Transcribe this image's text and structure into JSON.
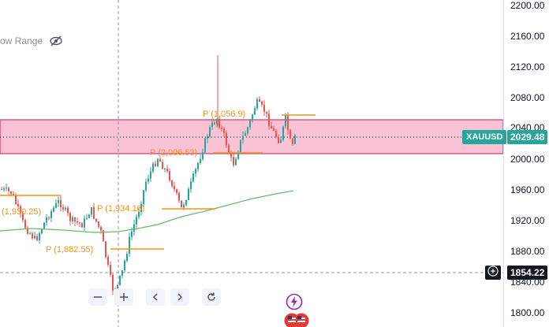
{
  "range_control": {
    "label": "ow Range",
    "icon": "eye-crossed-icon"
  },
  "price_axis": {
    "ticks": [
      "2200.00",
      "2160.00",
      "2120.00",
      "2080.00",
      "2040.00",
      "2000.00",
      "1960.00",
      "1920.00",
      "1880.00",
      "1840.00",
      "1800.00"
    ]
  },
  "symbol": {
    "name": "XAUUSD",
    "price": "2029.48",
    "color": "#26a69a"
  },
  "crosshair": {
    "price": "1854.22",
    "icon": "plus-icon"
  },
  "pivots": [
    {
      "label": "P (1,056.9)"
    },
    {
      "label": "P (2,006.53)"
    },
    {
      "label": "P (1,934.16)"
    },
    {
      "label": "P (1,882.55)"
    },
    {
      "label": "(1,930.25)"
    }
  ],
  "toolbar": {
    "zoom_out": "zoom-out-icon",
    "zoom_in": "zoom-in-icon",
    "scroll_left": "chevron-left-icon",
    "scroll_right": "chevron-right-icon",
    "reset": "reset-icon"
  },
  "events": {
    "icons": [
      "lightning-icon",
      "us-flag-icon"
    ]
  },
  "colors": {
    "up": "#26a69a",
    "down": "#ef5350",
    "zone_fill": "#f8bbd0",
    "zone_border": "#c2185b",
    "ma": "#66bb6a",
    "pivot": "#f7931a"
  }
}
